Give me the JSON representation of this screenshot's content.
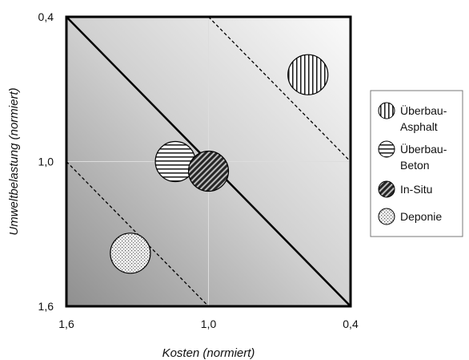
{
  "chart_data": {
    "type": "scatter",
    "xlabel": "Kosten (normiert)",
    "ylabel": "Umweltbelastung (normiert)",
    "xlim": [
      1.6,
      0.4
    ],
    "ylim": [
      1.6,
      0.4
    ],
    "x_ticks": [
      "1,6",
      "1,0",
      "0,4"
    ],
    "y_ticks": [
      "0,4",
      "1,0",
      "1,6"
    ],
    "grid": true,
    "background": "gradient from dark (lower-left) to light (upper-right)",
    "reference_lines": [
      {
        "style": "solid",
        "points": [
          [
            1.6,
            0.4
          ],
          [
            0.4,
            1.6
          ]
        ]
      },
      {
        "style": "dashed",
        "points": [
          [
            1.0,
            0.4
          ],
          [
            0.4,
            1.0
          ]
        ]
      },
      {
        "style": "dashed",
        "points": [
          [
            1.6,
            1.0
          ],
          [
            1.0,
            1.6
          ]
        ]
      }
    ],
    "series": [
      {
        "name": "Überbau-Asphalt",
        "pattern": "vertical-lines",
        "x": 0.58,
        "y": 0.64
      },
      {
        "name": "Überbau-Beton",
        "pattern": "horizontal-lines",
        "x": 1.14,
        "y": 1.0
      },
      {
        "name": "In-Situ",
        "pattern": "diagonal-lines-dark",
        "x": 1.0,
        "y": 1.04
      },
      {
        "name": "Deponie",
        "pattern": "dotted",
        "x": 1.33,
        "y": 1.38
      }
    ],
    "legend": {
      "position": "right",
      "entries": [
        {
          "lines": [
            "Überbau-",
            "Asphalt"
          ],
          "pattern": "vertical-lines"
        },
        {
          "lines": [
            "Überbau-",
            "Beton"
          ],
          "pattern": "horizontal-lines"
        },
        {
          "lines": [
            "In-Situ"
          ],
          "pattern": "diagonal-lines-dark"
        },
        {
          "lines": [
            "Deponie"
          ],
          "pattern": "dotted"
        }
      ]
    }
  }
}
